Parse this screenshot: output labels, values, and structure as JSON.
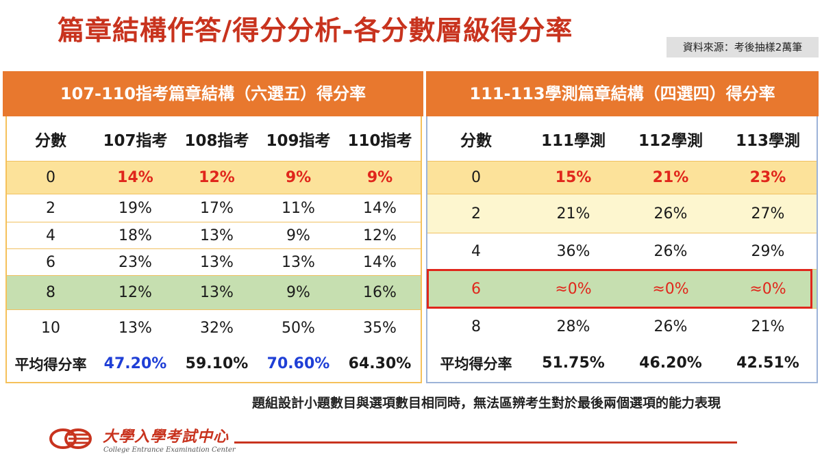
{
  "title": "篇章結構作答/得分分析-各分數層級得分率",
  "source": "資料來源：考後抽樣2萬筆",
  "left_table": {
    "title": "107-110指考篇章結構（六選五）得分率",
    "headers": [
      "分數",
      "107指考",
      "108指考",
      "109指考",
      "110指考"
    ],
    "rows": [
      [
        "0",
        "14%",
        "12%",
        "9%",
        "9%"
      ],
      [
        "2",
        "19%",
        "17%",
        "11%",
        "14%"
      ],
      [
        "4",
        "18%",
        "13%",
        "9%",
        "12%"
      ],
      [
        "6",
        "23%",
        "13%",
        "13%",
        "14%"
      ],
      [
        "8",
        "12%",
        "13%",
        "9%",
        "16%"
      ],
      [
        "10",
        "13%",
        "32%",
        "50%",
        "35%"
      ]
    ],
    "avg": [
      "平均得分率",
      "47.20%",
      "59.10%",
      "70.60%",
      "64.30%"
    ],
    "row_colors": {
      "score_0": "#fce29a",
      "score_8": "#c6dfb0"
    }
  },
  "right_table": {
    "title": "111-113學測篇章結構（四選四）得分率",
    "headers": [
      "分數",
      "111學測",
      "112學測",
      "113學測"
    ],
    "rows": [
      [
        "0",
        "15%",
        "21%",
        "23%"
      ],
      [
        "2",
        "21%",
        "26%",
        "27%"
      ],
      [
        "4",
        "36%",
        "26%",
        "29%"
      ],
      [
        "6",
        "≈0%",
        "≈0%",
        "≈0%"
      ],
      [
        "8",
        "28%",
        "26%",
        "21%"
      ]
    ],
    "avg": [
      "平均得分率",
      "51.75%",
      "46.20%",
      "42.51%"
    ],
    "row_colors": {
      "score_0": "#fce29a",
      "score_2": "#fdf6cf",
      "score_6": "#c6dfb0"
    }
  },
  "note": "題組設計小題數目與選項數目相同時，無法區辨考生對於最後兩個選項的能力表現",
  "logo": {
    "name_cn": "大學入學考試中心",
    "name_en": "College Entrance Examination Center",
    "icon": "ceec-logo-icon"
  },
  "colors": {
    "title": "#c8331e",
    "header_bar": "#e8782e",
    "highlight_red": "#e0261b",
    "highlight_blue": "#1f3fd6"
  }
}
